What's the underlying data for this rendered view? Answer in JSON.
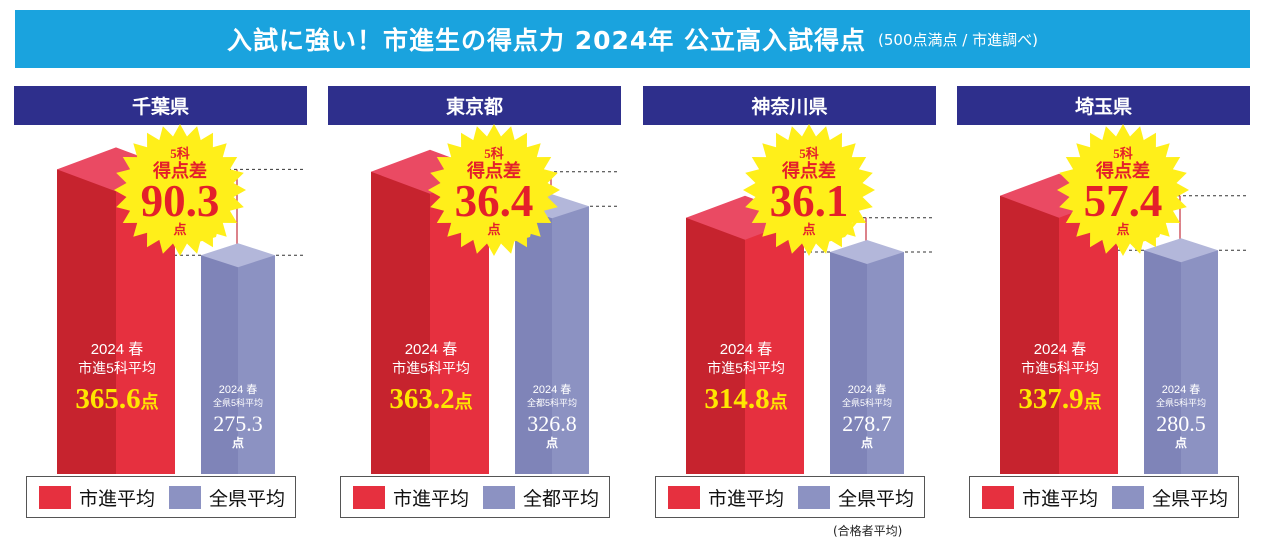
{
  "banner": {
    "title": "入試に強い！市進生の得点力 2024年 公立高入試得点",
    "subtitle": "(500点満点 / 市進調べ)"
  },
  "colors": {
    "banner": "#1aa3de",
    "panel_header": "#2e2f8c",
    "ichishin": "#e6303f",
    "prefecture": "#8c92c2",
    "burst": "#ffef1a",
    "burst_text": "#e4202a"
  },
  "legend_note": "(合格者平均)",
  "chart_data": [
    {
      "type": "bar",
      "title": "千葉県",
      "diff_label": [
        "5科",
        "得点差"
      ],
      "diff_value": "90.3",
      "diff_unit": "点",
      "categories": [
        "市進平均",
        "全県平均"
      ],
      "values": [
        365.6,
        275.3
      ],
      "bar_labels": [
        {
          "lines": [
            "2024 春",
            "市進5科平均"
          ],
          "value": "365.6",
          "unit": "点"
        },
        {
          "lines": [
            "2024 春",
            "全県5科平均"
          ],
          "value": "275.3",
          "unit": "点"
        }
      ],
      "legend": [
        "市進平均",
        "全県平均"
      ]
    },
    {
      "type": "bar",
      "title": "東京都",
      "diff_label": [
        "5科",
        "得点差"
      ],
      "diff_value": "36.4",
      "diff_unit": "点",
      "categories": [
        "市進平均",
        "全都平均"
      ],
      "values": [
        363.2,
        326.8
      ],
      "bar_labels": [
        {
          "lines": [
            "2024 春",
            "市進5科平均"
          ],
          "value": "363.2",
          "unit": "点"
        },
        {
          "lines": [
            "2024 春",
            "全都5科平均"
          ],
          "value": "326.8",
          "unit": "点"
        }
      ],
      "legend": [
        "市進平均",
        "全都平均"
      ]
    },
    {
      "type": "bar",
      "title": "神奈川県",
      "diff_label": [
        "5科",
        "得点差"
      ],
      "diff_value": "36.1",
      "diff_unit": "点",
      "categories": [
        "市進平均",
        "全県平均"
      ],
      "values": [
        314.8,
        278.7
      ],
      "bar_labels": [
        {
          "lines": [
            "2024 春",
            "市進5科平均"
          ],
          "value": "314.8",
          "unit": "点"
        },
        {
          "lines": [
            "2024 春",
            "全県5科平均"
          ],
          "value": "278.7",
          "unit": "点"
        }
      ],
      "legend": [
        "市進平均",
        "全県平均"
      ]
    },
    {
      "type": "bar",
      "title": "埼玉県",
      "diff_label": [
        "5科",
        "得点差"
      ],
      "diff_value": "57.4",
      "diff_unit": "点",
      "categories": [
        "市進平均",
        "全県平均"
      ],
      "values": [
        337.9,
        280.5
      ],
      "bar_labels": [
        {
          "lines": [
            "2024 春",
            "市進5科平均"
          ],
          "value": "337.9",
          "unit": "点"
        },
        {
          "lines": [
            "2024 春",
            "全県5科平均"
          ],
          "value": "280.5",
          "unit": "点"
        }
      ],
      "legend": [
        "市進平均",
        "全県平均"
      ]
    }
  ]
}
